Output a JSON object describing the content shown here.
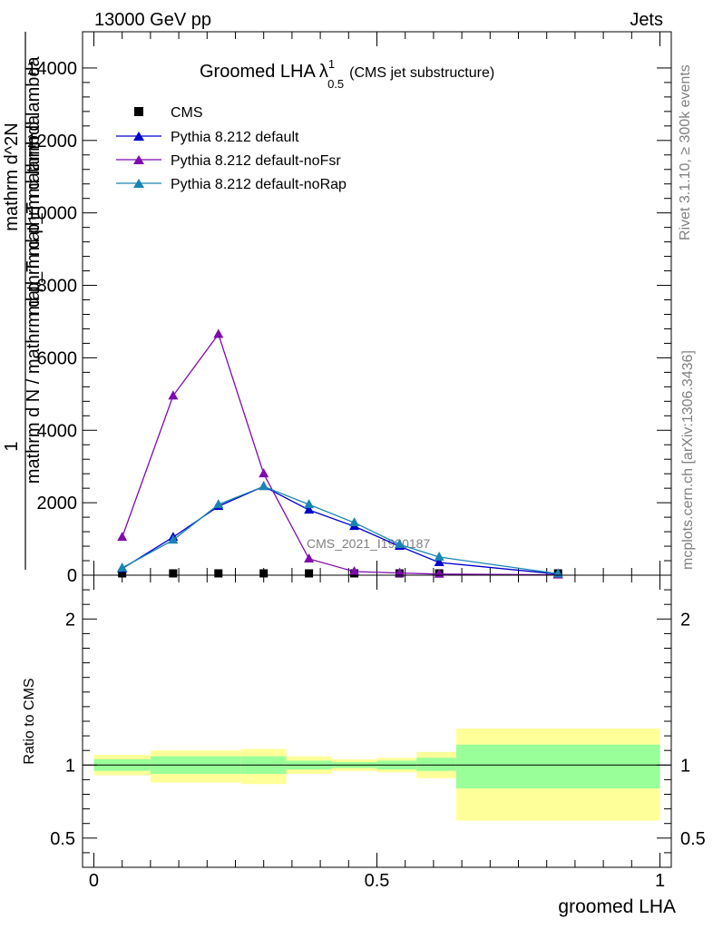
{
  "header": {
    "left": "13000 GeV pp",
    "right": "Jets"
  },
  "side_labels": {
    "rivet": "Rivet 3.1.10, ≥ 300k events",
    "mcplots": "mcplots.cern.ch [arXiv:1306.3436]"
  },
  "watermark": "CMS_2021_I1920187",
  "colors": {
    "cms": "#000000",
    "default": "#0000cc",
    "noFsr": "#7e0ab0",
    "noRap": "#1a85b5",
    "band_inner": "#99ff99",
    "band_outer": "#ffff99"
  },
  "chart_data": [
    {
      "type": "line",
      "title_main": "Groomed LHA",
      "title_symbol": "λ",
      "title_sup": "1",
      "title_sub": "0.5",
      "title_tail": "(CMS jet substructure)",
      "ylabel_numerator": "1",
      "ylabel_denominator": "mathrm d N / mathrm d p_T mathrm d lambda",
      "ylabel_frac_top": "mathrm d^2N",
      "ylabel_frac_bot": "mathrm d p_T mathrm d lambda",
      "ylim": [
        0,
        15000
      ],
      "y_ticks": [
        0,
        2000,
        4000,
        6000,
        8000,
        10000,
        12000,
        14000
      ],
      "y_tick_labels": [
        "0",
        "2000",
        "4000",
        "6000",
        "8000",
        "10000",
        "12000",
        "14000"
      ],
      "xlim": [
        0,
        1
      ],
      "series": [
        {
          "name": "CMS",
          "marker": "square",
          "x": [
            0.05,
            0.14,
            0.22,
            0.3,
            0.38,
            0.46,
            0.54,
            0.61,
            0.82
          ],
          "y": [
            0,
            0,
            0,
            0,
            0,
            0,
            0,
            0,
            0
          ]
        },
        {
          "name": "Pythia 8.212 default",
          "marker": "triangle",
          "x": [
            0.05,
            0.14,
            0.22,
            0.3,
            0.38,
            0.46,
            0.54,
            0.61,
            0.82
          ],
          "y": [
            180,
            1050,
            1900,
            2450,
            1800,
            1350,
            800,
            350,
            30
          ]
        },
        {
          "name": "Pythia 8.212 default-noFsr",
          "marker": "triangle",
          "x": [
            0.05,
            0.14,
            0.22,
            0.3,
            0.38,
            0.46,
            0.54,
            0.61,
            0.82
          ],
          "y": [
            1050,
            4950,
            6650,
            2800,
            450,
            100,
            60,
            30,
            10
          ]
        },
        {
          "name": "Pythia 8.212 default-noRap",
          "marker": "triangle",
          "x": [
            0.05,
            0.14,
            0.22,
            0.3,
            0.38,
            0.46,
            0.54,
            0.61,
            0.82
          ],
          "y": [
            200,
            970,
            1950,
            2450,
            1950,
            1450,
            850,
            500,
            40
          ]
        }
      ]
    },
    {
      "type": "area",
      "ylabel": "Ratio to CMS",
      "xlabel": "groomed LHA",
      "ylim": [
        0.3,
        2.3
      ],
      "y_ticks": [
        0.5,
        1,
        2
      ],
      "y_tick_labels": [
        "0.5",
        "1",
        "2"
      ],
      "xlim": [
        -0.02,
        1.02
      ],
      "x_ticks": [
        0,
        0.5,
        1
      ],
      "x_tick_labels": [
        "0",
        "0.5",
        "1"
      ],
      "bins": [
        {
          "x0": 0.0,
          "x1": 0.1,
          "inner": [
            0.96,
            1.04
          ],
          "outer": [
            0.93,
            1.07
          ]
        },
        {
          "x0": 0.1,
          "x1": 0.26,
          "inner": [
            0.94,
            1.06
          ],
          "outer": [
            0.88,
            1.1
          ]
        },
        {
          "x0": 0.26,
          "x1": 0.34,
          "inner": [
            0.94,
            1.06
          ],
          "outer": [
            0.87,
            1.11
          ]
        },
        {
          "x0": 0.34,
          "x1": 0.42,
          "inner": [
            0.97,
            1.03
          ],
          "outer": [
            0.94,
            1.06
          ]
        },
        {
          "x0": 0.42,
          "x1": 0.5,
          "inner": [
            0.98,
            1.02
          ],
          "outer": [
            0.96,
            1.04
          ]
        },
        {
          "x0": 0.5,
          "x1": 0.57,
          "inner": [
            0.97,
            1.03
          ],
          "outer": [
            0.95,
            1.05
          ]
        },
        {
          "x0": 0.57,
          "x1": 0.64,
          "inner": [
            0.96,
            1.05
          ],
          "outer": [
            0.91,
            1.09
          ]
        },
        {
          "x0": 0.64,
          "x1": 1.0,
          "inner": [
            0.84,
            1.14
          ],
          "outer": [
            0.62,
            1.25
          ]
        }
      ]
    }
  ]
}
